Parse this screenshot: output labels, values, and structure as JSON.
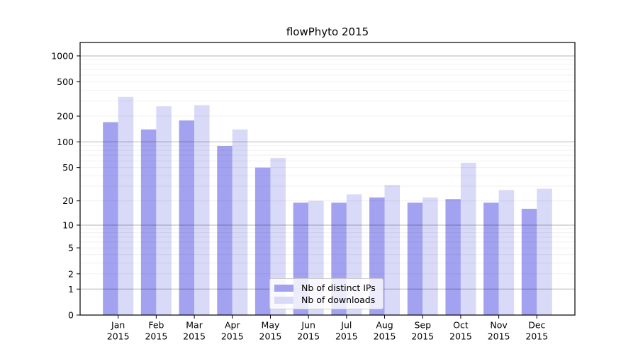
{
  "figure": {
    "title": "flowPhyto 2015",
    "background": "#ffffff"
  },
  "chart_data": {
    "type": "bar",
    "title": "flowPhyto 2015",
    "categories": [
      "Jan 2015",
      "Feb 2015",
      "Mar 2015",
      "Apr 2015",
      "May 2015",
      "Jun 2015",
      "Jul 2015",
      "Aug 2015",
      "Sep 2015",
      "Oct 2015",
      "Nov 2015",
      "Dec 2015"
    ],
    "series": [
      {
        "name": "Nb of distinct IPs",
        "color": "#a2a2f0",
        "values": [
          170,
          140,
          178,
          90,
          50,
          19,
          19,
          22,
          19,
          21,
          19,
          16
        ]
      },
      {
        "name": "Nb of downloads",
        "color": "#d9d9f8",
        "values": [
          335,
          260,
          268,
          140,
          65,
          20,
          24,
          31,
          22,
          57,
          27,
          28
        ]
      }
    ],
    "yscale": "log1p",
    "yticks": [
      0,
      1,
      2,
      5,
      10,
      20,
      50,
      100,
      200,
      500,
      1000
    ],
    "ylim": [
      0,
      1400
    ],
    "xlabel": "",
    "ylabel": "",
    "grid": "horizontal major + faint log minors",
    "legend_position": "inside lower-center"
  },
  "colors": {
    "bar_distinct_ips": "#a2a2f0",
    "bar_downloads": "#d9d9f8",
    "major_grid": "#b5b5b5",
    "minor_grid": "#f0f0f0",
    "axis": "#000000",
    "legend_border": "#cccccc"
  }
}
